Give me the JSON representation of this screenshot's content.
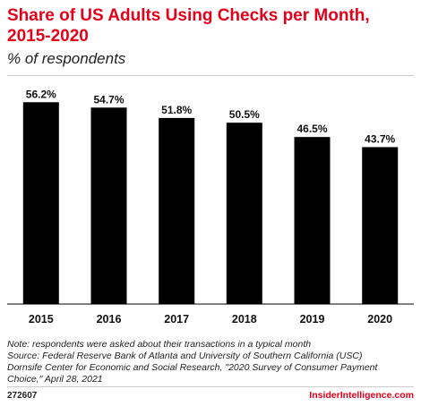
{
  "header": {
    "title": "Share of US Adults Using Checks per Month, 2015-2020",
    "subtitle": "% of respondents"
  },
  "chart_data": {
    "type": "bar",
    "categories": [
      "2015",
      "2016",
      "2017",
      "2018",
      "2019",
      "2020"
    ],
    "values": [
      56.2,
      54.7,
      51.8,
      50.5,
      46.5,
      43.7
    ],
    "data_labels": [
      "56.2%",
      "54.7%",
      "51.8%",
      "50.5%",
      "46.5%",
      "43.7%"
    ],
    "title": "Share of US Adults Using Checks per Month, 2015-2020",
    "subtitle": "% of respondents",
    "xlabel": "",
    "ylabel": "",
    "ylim": [
      0,
      60
    ],
    "grid": false,
    "bar_color": "#000000"
  },
  "footer": {
    "note": "Note: respondents were asked about their transactions in a typical month",
    "source_lines": [
      "Source: Federal Reserve Bank of Atlanta and University of Southern California (USC)",
      "Dornsife Center for Economic and Social Research, \"2020 Survey of Consumer Payment",
      "Choice,\" April 28, 2021"
    ],
    "chart_id": "272607",
    "brand": "InsiderIntelligence.com"
  },
  "colors": {
    "accent": "#e2001a",
    "bar": "#000000",
    "text": "#111111",
    "divider": "#cccccc"
  }
}
